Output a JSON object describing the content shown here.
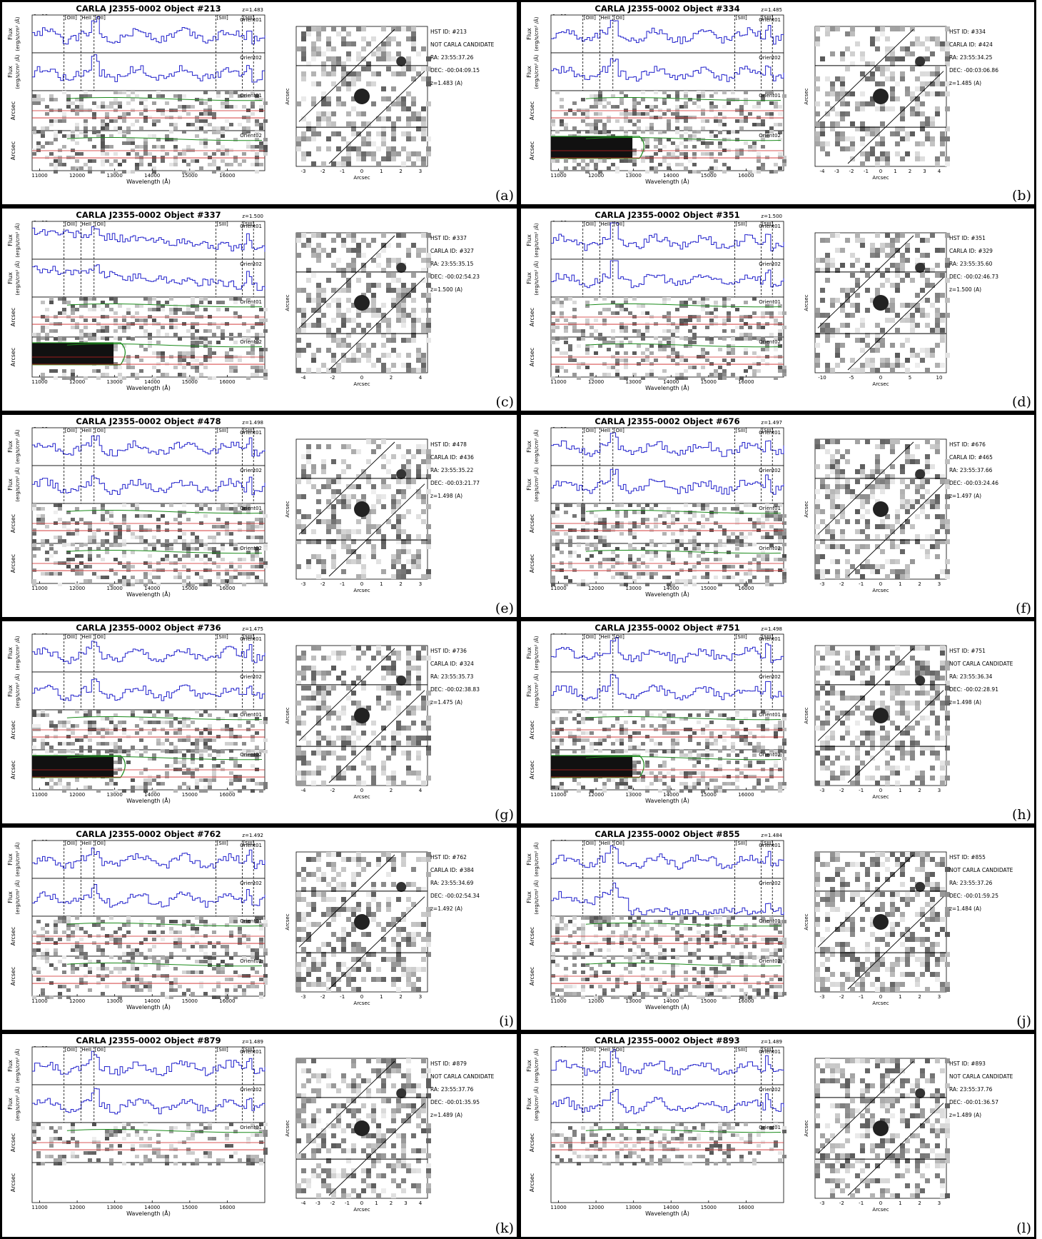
{
  "figure": {
    "common": {
      "flux_ylabel": "Flux",
      "flux_unit": "(erg/s/cm² /Å)",
      "arcsec_label": "Arcsec",
      "wavelength_label": "Wavelength (Å)",
      "wave_ticks": [
        "11000",
        "12000",
        "13000",
        "14000",
        "15000",
        "16000"
      ],
      "orient1": "Orient01",
      "orient2": "Orient02",
      "line_labels": [
        "[OIII]",
        "HeII",
        "[OII]",
        "[SIII]",
        "[SIII]"
      ],
      "spec_line_color": "#2222cc",
      "contour_color": "#1a8a1a",
      "trace_color": "#cc2222"
    },
    "panels": [
      {
        "letter": "(a)",
        "title": "CARLA J2355-0002 Object #213",
        "z": "z=1.483",
        "scale": "1e-18",
        "hst": "HST ID: #213",
        "carla": "NOT CARLA CANDIDATE",
        "ra": "RA: 23:55:37.26",
        "dec": "DEC: -00:04:09.15",
        "zinfo": "z=1.483 (A)",
        "img_ticks": [
          "-3",
          "-2",
          "-1",
          "0",
          "1",
          "2",
          "3"
        ],
        "seed": 11,
        "peak": 0.8,
        "trend": "flat",
        "dark2": false,
        "blank2": false
      },
      {
        "letter": "(b)",
        "title": "CARLA J2355-0002 Object #334",
        "z": "z=1.485",
        "scale": "1e-19",
        "hst": "HST ID: #334",
        "carla": "CARLA ID: #424",
        "ra": "RA: 23:55:34.25",
        "dec": "DEC: -00:03:06.86",
        "zinfo": "z=1.485 (A)",
        "img_ticks": [
          "-4",
          "-3",
          "-2",
          "-1",
          "0",
          "1",
          "2",
          "3",
          "4"
        ],
        "seed": 23,
        "peak": 0.5,
        "trend": "flat",
        "dark2": true,
        "blank2": false
      },
      {
        "letter": "(c)",
        "title": "CARLA J2355-0002 Object #337",
        "z": "z=1.500",
        "scale": "1e-18",
        "hst": "HST ID: #337",
        "carla": "CARLA ID: #327",
        "ra": "RA: 23:55:35.15",
        "dec": "DEC: -00:02:54.23",
        "zinfo": "z=1.500 (A)",
        "img_ticks": [
          "-4",
          "-2",
          "0",
          "2",
          "4"
        ],
        "seed": 37,
        "peak": 0.3,
        "trend": "down",
        "dark2": true,
        "blank2": false
      },
      {
        "letter": "(d)",
        "title": "CARLA J2355-0002 Object #351",
        "z": "z=1.500",
        "scale": "1e-18",
        "hst": "HST ID: #351",
        "carla": "CARLA ID: #329",
        "ra": "RA: 23:55:35.60",
        "dec": "DEC: -00:02:46.73",
        "zinfo": "z=1.500 (A)",
        "img_ticks": [
          "-10",
          "-5",
          "0",
          "5",
          "10"
        ],
        "seed": 41,
        "peak": 1.0,
        "trend": "flat",
        "dark2": false,
        "blank2": false
      },
      {
        "letter": "(e)",
        "title": "CARLA J2355-0002 Object #478",
        "z": "z=1.498",
        "scale": "1e-19",
        "hst": "HST ID: #478",
        "carla": "CARLA ID: #436",
        "ra": "RA: 23:55:35.22",
        "dec": "DEC: -00:03:21.77",
        "zinfo": "z=1.498 (A)",
        "img_ticks": [
          "-3",
          "-2",
          "-1",
          "0",
          "1",
          "2",
          "3"
        ],
        "seed": 53,
        "peak": 0.4,
        "trend": "flat",
        "dark2": false,
        "blank2": false
      },
      {
        "letter": "(f)",
        "title": "CARLA J2355-0002 Object #676",
        "z": "z=1.497",
        "scale": "1e-18",
        "hst": "HST ID: #676",
        "carla": "CARLA ID: #465",
        "ra": "RA: 23:55:37.66",
        "dec": "DEC: -00:03:24.46",
        "zinfo": "z=1.497 (A)",
        "img_ticks": [
          "-3",
          "-2",
          "-1",
          "0",
          "1",
          "2",
          "3"
        ],
        "seed": 67,
        "peak": 0.7,
        "trend": "flat",
        "dark2": false,
        "blank2": false
      },
      {
        "letter": "(g)",
        "title": "CARLA J2355-0002 Object #736",
        "z": "z=1.475",
        "scale": "1e-19",
        "hst": "HST ID: #736",
        "carla": "CARLA ID: #324",
        "ra": "RA: 23:55:35.73",
        "dec": "DEC: -00:02:38.83",
        "zinfo": "z=1.475 (A)",
        "img_ticks": [
          "-4",
          "-2",
          "0",
          "2",
          "4"
        ],
        "seed": 71,
        "peak": 0.5,
        "trend": "flat",
        "dark2": true,
        "blank2": false
      },
      {
        "letter": "(h)",
        "title": "CARLA J2355-0002 Object #751",
        "z": "z=1.498",
        "scale": "1e-18",
        "hst": "HST ID: #751",
        "carla": "NOT CARLA CANDIDATE",
        "ra": "RA: 23:55:36.34",
        "dec": "DEC: -00:02:28.91",
        "zinfo": "z=1.498 (A)",
        "img_ticks": [
          "-3",
          "-2",
          "-1",
          "0",
          "1",
          "2",
          "3"
        ],
        "seed": 83,
        "peak": 0.8,
        "trend": "flat",
        "dark2": true,
        "blank2": false
      },
      {
        "letter": "(i)",
        "title": "CARLA J2355-0002 Object #762",
        "z": "z=1.492",
        "scale": "1e-19",
        "hst": "HST ID: #762",
        "carla": "CARLA ID: #384",
        "ra": "RA: 23:55:34.69",
        "dec": "DEC: -00:02:54.34",
        "zinfo": "z=1.492 (A)",
        "img_ticks": [
          "-3",
          "-2",
          "-1",
          "0",
          "1",
          "2",
          "3"
        ],
        "seed": 97,
        "peak": 0.4,
        "trend": "flat",
        "dark2": false,
        "blank2": false
      },
      {
        "letter": "(j)",
        "title": "CARLA J2355-0002 Object #855",
        "z": "z=1.484",
        "scale": "1e-19",
        "hst": "HST ID: #855",
        "carla": "NOT CARLA CANDIDATE",
        "ra": "RA: 23:55:37.26",
        "dec": "DEC: -00:01:59.25",
        "zinfo": "z=1.484 (A)",
        "img_ticks": [
          "-3",
          "-2",
          "-1",
          "0",
          "1",
          "2",
          "3"
        ],
        "seed": 101,
        "peak": 0.5,
        "trend": "cut",
        "dark2": false,
        "blank2": false
      },
      {
        "letter": "(k)",
        "title": "CARLA J2355-0002 Object #879",
        "z": "z=1.489",
        "scale": "1e-19",
        "hst": "HST ID: #879",
        "carla": "NOT CARLA CANDIDATE",
        "ra": "RA: 23:55:37.76",
        "dec": "DEC: -00:01:35.95",
        "zinfo": "z=1.489 (A)",
        "img_ticks": [
          "-4",
          "-3",
          "-2",
          "-1",
          "0",
          "1",
          "2",
          "3",
          "4"
        ],
        "seed": 113,
        "peak": 0.6,
        "trend": "flat",
        "dark2": false,
        "blank2": true
      },
      {
        "letter": "(l)",
        "title": "CARLA J2355-0002 Object #893",
        "z": "z=1.489",
        "scale": "1e-19",
        "hst": "HST ID: #893",
        "carla": "NOT CARLA CANDIDATE",
        "ra": "RA: 23:55:37.76",
        "dec": "DEC: -00:01:36.57",
        "zinfo": "z=1.489 (A)",
        "img_ticks": [
          "-3",
          "-2",
          "-1",
          "0",
          "1",
          "2",
          "3"
        ],
        "seed": 127,
        "peak": 0.6,
        "trend": "flat",
        "dark2": false,
        "blank2": true
      }
    ]
  }
}
